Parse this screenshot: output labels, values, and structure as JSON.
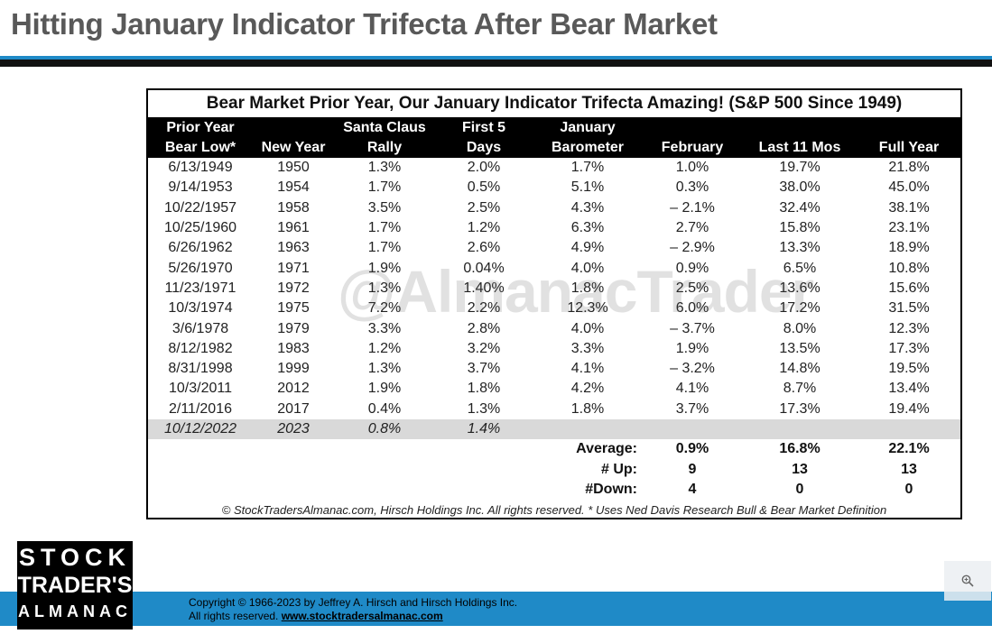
{
  "title": "Hitting January Indicator Trifecta After Bear Market",
  "colors": {
    "accent_blue": "#1f8ac7",
    "negative_red": "#e0201a",
    "highlight_gray": "#d9d9d9"
  },
  "table": {
    "title": "Bear Market  Prior Year, Our January Indicator Trifecta Amazing! (S&P 500 Since 1949)",
    "header_line1": [
      "Prior Year",
      "",
      "Santa Claus",
      "First 5",
      "January",
      "",
      "",
      ""
    ],
    "header_line2": [
      "Bear Low*",
      "New Year",
      "Rally",
      "Days",
      "Barometer",
      "February",
      "Last 11 Mos",
      "Full Year"
    ],
    "rows": [
      [
        "6/13/1949",
        "1950",
        "1.3%",
        "2.0%",
        "1.7%",
        "1.0%",
        "19.7%",
        "21.8%"
      ],
      [
        "9/14/1953",
        "1954",
        "1.7%",
        "0.5%",
        "5.1%",
        "0.3%",
        "38.0%",
        "45.0%"
      ],
      [
        "10/22/1957",
        "1958",
        "3.5%",
        "2.5%",
        "4.3%",
        "– 2.1%",
        "32.4%",
        "38.1%"
      ],
      [
        "10/25/1960",
        "1961",
        "1.7%",
        "1.2%",
        "6.3%",
        "2.7%",
        "15.8%",
        "23.1%"
      ],
      [
        "6/26/1962",
        "1963",
        "1.7%",
        "2.6%",
        "4.9%",
        "– 2.9%",
        "13.3%",
        "18.9%"
      ],
      [
        "5/26/1970",
        "1971",
        "1.9%",
        "0.04%",
        "4.0%",
        "0.9%",
        "6.5%",
        "10.8%"
      ],
      [
        "11/23/1971",
        "1972",
        "1.3%",
        "1.40%",
        "1.8%",
        "2.5%",
        "13.6%",
        "15.6%"
      ],
      [
        "10/3/1974",
        "1975",
        "7.2%",
        "2.2%",
        "12.3%",
        "6.0%",
        "17.2%",
        "31.5%"
      ],
      [
        "3/6/1978",
        "1979",
        "3.3%",
        "2.8%",
        "4.0%",
        "– 3.7%",
        "8.0%",
        "12.3%"
      ],
      [
        "8/12/1982",
        "1983",
        "1.2%",
        "3.2%",
        "3.3%",
        "1.9%",
        "13.5%",
        "17.3%"
      ],
      [
        "8/31/1998",
        "1999",
        "1.3%",
        "3.7%",
        "4.1%",
        "– 3.2%",
        "14.8%",
        "19.5%"
      ],
      [
        "10/3/2011",
        "2012",
        "1.9%",
        "1.8%",
        "4.2%",
        "4.1%",
        "8.7%",
        "13.4%"
      ],
      [
        "2/11/2016",
        "2017",
        "0.4%",
        "1.3%",
        "1.8%",
        "3.7%",
        "17.3%",
        "19.4%"
      ]
    ],
    "negative_flags": [
      [
        false,
        false,
        false,
        false,
        false,
        false,
        false,
        false
      ],
      [
        false,
        false,
        false,
        false,
        false,
        false,
        false,
        false
      ],
      [
        false,
        false,
        false,
        false,
        false,
        true,
        false,
        false
      ],
      [
        false,
        false,
        false,
        false,
        false,
        false,
        false,
        false
      ],
      [
        false,
        false,
        false,
        false,
        false,
        true,
        false,
        false
      ],
      [
        false,
        false,
        false,
        false,
        false,
        false,
        false,
        false
      ],
      [
        false,
        false,
        false,
        false,
        false,
        false,
        false,
        false
      ],
      [
        false,
        false,
        false,
        false,
        false,
        false,
        false,
        false
      ],
      [
        false,
        false,
        false,
        false,
        false,
        true,
        false,
        false
      ],
      [
        false,
        false,
        false,
        false,
        false,
        false,
        false,
        false
      ],
      [
        false,
        false,
        false,
        false,
        false,
        true,
        false,
        false
      ],
      [
        false,
        false,
        false,
        false,
        false,
        false,
        false,
        false
      ],
      [
        false,
        false,
        false,
        false,
        false,
        false,
        false,
        false
      ]
    ],
    "current_row": [
      "10/12/2022",
      "2023",
      "0.8%",
      "1.4%",
      "",
      "",
      "",
      ""
    ],
    "stats": [
      {
        "label": "Average:",
        "february": "0.9%",
        "last11": "16.8%",
        "full": "22.1%"
      },
      {
        "label": "# Up:",
        "february": "9",
        "last11": "13",
        "full": "13"
      },
      {
        "label": "#Down:",
        "february": "4",
        "last11": "0",
        "full": "0"
      }
    ],
    "footnote": "© StockTradersAlmanac.com, Hirsch Holdings Inc. All rights reserved. * Uses Ned Davis Research Bull & Bear Market Definition",
    "watermark": "@AlmanacTrader"
  },
  "footer": {
    "copyright": "Copyright © 1966-2023 by Jeffrey A. Hirsch and Hirsch Holdings Inc.",
    "rights_prefix": "All rights reserved. ",
    "link_text": "www.stocktradersalmanac.com"
  },
  "logo": {
    "line1": "STOCK",
    "line2": "TRADER'S",
    "line3": "ALMANAC"
  },
  "zoom_icon": "magnify-plus-icon"
}
